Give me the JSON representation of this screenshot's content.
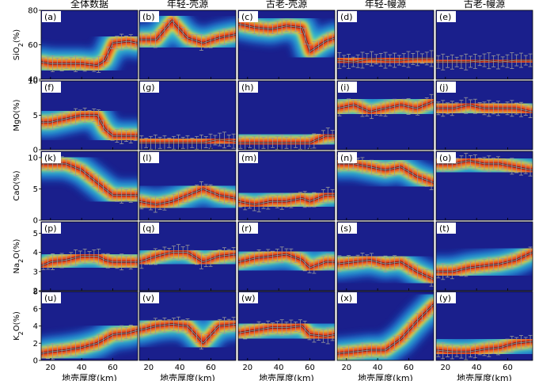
{
  "chart_data": {
    "type": "heatmap",
    "columns": [
      "全体数据",
      "年轻-壳源",
      "古老-壳源",
      "年轻-幔源",
      "古老-幔源"
    ],
    "rows": [
      {
        "ylabel": "SiO2(%)",
        "ylabel_main": "SiO",
        "ylabel_sub": "2",
        "ylabel_unit": "(%)",
        "ylim": [
          40,
          80
        ],
        "yticks": [
          "80",
          "60",
          "40"
        ],
        "yvals": [
          80,
          60,
          40
        ]
      },
      {
        "ylabel": "MgO(%)",
        "ylabel_main": "MgO",
        "ylabel_sub": "",
        "ylabel_unit": "(%)",
        "ylim": [
          0,
          10
        ],
        "yticks": [
          "10",
          "5",
          "0"
        ],
        "yvals": [
          10,
          5,
          0
        ]
      },
      {
        "ylabel": "CaO(%)",
        "ylabel_main": "CaO",
        "ylabel_sub": "",
        "ylabel_unit": "(%)",
        "ylim": [
          0,
          11
        ],
        "yticks": [
          "10",
          "5",
          "0"
        ],
        "yvals": [
          10,
          5,
          0
        ]
      },
      {
        "ylabel": "Na2O(%)",
        "ylabel_main": "Na",
        "ylabel_sub": "2",
        "ylabel_unit": "O(%)",
        "ylim": [
          2,
          5.6
        ],
        "yticks": [
          "5",
          "4",
          "3",
          "2"
        ],
        "yvals": [
          5,
          4,
          3,
          2
        ]
      },
      {
        "ylabel": "K2O(%)",
        "ylabel_main": "K",
        "ylabel_sub": "2",
        "ylabel_unit": "O(%)",
        "ylim": [
          0,
          8
        ],
        "yticks": [
          "8",
          "6",
          "4",
          "2",
          "0"
        ],
        "yvals": [
          8,
          6,
          4,
          2,
          0
        ]
      }
    ],
    "panel_labels": [
      "(a)",
      "(b)",
      "(c)",
      "(d)",
      "(e)",
      "(f)",
      "(g)",
      "(h)",
      "(i)",
      "(j)",
      "(k)",
      "(l)",
      "(m)",
      "(n)",
      "(o)",
      "(p)",
      "(q)",
      "(r)",
      "(s)",
      "(t)",
      "(u)",
      "(v)",
      "(w)",
      "(x)",
      "(y)"
    ],
    "xlabel": "地壳厚度(km)",
    "xlim": [
      14,
      76
    ],
    "xticks": [
      "20",
      "40",
      "60"
    ],
    "xvals": [
      20,
      40,
      60
    ],
    "medians": [
      [
        {
          "x": [
            14,
            20,
            30,
            40,
            50,
            55,
            60,
            70,
            76
          ],
          "y": [
            50,
            49,
            49,
            49,
            48,
            51,
            61,
            62,
            61
          ]
        },
        {
          "x": [
            14,
            25,
            35,
            45,
            55,
            65,
            76
          ],
          "y": [
            63,
            63,
            74,
            64,
            61,
            64,
            66
          ]
        },
        {
          "x": [
            14,
            25,
            35,
            45,
            55,
            60,
            70,
            76
          ],
          "y": [
            72,
            70,
            69,
            71,
            70,
            56,
            62,
            64
          ]
        },
        {
          "x": [
            14,
            25,
            35,
            45,
            55,
            65,
            76
          ],
          "y": [
            51,
            50,
            52,
            51,
            51,
            52,
            52
          ]
        },
        {
          "x": [
            14,
            25,
            35,
            45,
            55,
            65,
            76
          ],
          "y": [
            50,
            50,
            50,
            51,
            50,
            51,
            51
          ]
        }
      ],
      [
        {
          "x": [
            14,
            20,
            30,
            40,
            50,
            55,
            60,
            70,
            76
          ],
          "y": [
            4,
            4,
            4.5,
            5,
            5,
            3,
            2,
            2,
            2
          ]
        },
        {
          "x": [
            14,
            25,
            35,
            45,
            55,
            65,
            76
          ],
          "y": [
            1,
            1,
            1,
            1,
            1,
            1.5,
            1.2
          ]
        },
        {
          "x": [
            14,
            25,
            35,
            45,
            55,
            60,
            70,
            76
          ],
          "y": [
            1,
            1,
            1,
            1,
            1,
            1,
            2,
            2
          ]
        },
        {
          "x": [
            14,
            25,
            35,
            45,
            55,
            65,
            76
          ],
          "y": [
            6,
            6.5,
            5.5,
            6,
            6.5,
            6,
            7
          ]
        },
        {
          "x": [
            14,
            25,
            35,
            45,
            55,
            65,
            76
          ],
          "y": [
            6,
            6,
            6.5,
            6,
            6,
            6,
            5.5
          ]
        }
      ],
      [
        {
          "x": [
            14,
            20,
            30,
            40,
            50,
            55,
            60,
            70,
            76
          ],
          "y": [
            9,
            9,
            9,
            8,
            6,
            5,
            4,
            4,
            4
          ]
        },
        {
          "x": [
            14,
            25,
            35,
            45,
            55,
            65,
            76
          ],
          "y": [
            3,
            2.5,
            3,
            4,
            5,
            4,
            3.5
          ]
        },
        {
          "x": [
            14,
            25,
            35,
            45,
            55,
            60,
            70,
            76
          ],
          "y": [
            3,
            2.5,
            3,
            3,
            3.5,
            3,
            4,
            4
          ]
        },
        {
          "x": [
            14,
            25,
            35,
            45,
            55,
            65,
            76
          ],
          "y": [
            9,
            9,
            8.5,
            8,
            8.5,
            7,
            6
          ]
        },
        {
          "x": [
            14,
            25,
            35,
            45,
            55,
            65,
            76
          ],
          "y": [
            9,
            9,
            9.5,
            9,
            9,
            8.5,
            8
          ]
        }
      ],
      [
        {
          "x": [
            14,
            20,
            30,
            40,
            50,
            55,
            60,
            70,
            76
          ],
          "y": [
            3.3,
            3.5,
            3.6,
            3.8,
            3.8,
            3.6,
            3.5,
            3.5,
            3.5
          ]
        },
        {
          "x": [
            14,
            25,
            35,
            45,
            55,
            65,
            76
          ],
          "y": [
            3.5,
            3.8,
            4,
            4,
            3.5,
            3.8,
            3.9
          ]
        },
        {
          "x": [
            14,
            25,
            35,
            45,
            55,
            60,
            70,
            76
          ],
          "y": [
            3.5,
            3.7,
            3.8,
            3.9,
            3.6,
            3.2,
            3.5,
            3.5
          ]
        },
        {
          "x": [
            14,
            25,
            35,
            45,
            55,
            65,
            76
          ],
          "y": [
            3.4,
            3.5,
            3.6,
            3.4,
            3.5,
            3,
            2.6
          ]
        },
        {
          "x": [
            14,
            25,
            35,
            45,
            55,
            65,
            76
          ],
          "y": [
            3,
            3,
            3.2,
            3.3,
            3.4,
            3.6,
            4
          ]
        }
      ],
      [
        {
          "x": [
            14,
            20,
            30,
            40,
            50,
            55,
            60,
            70,
            76
          ],
          "y": [
            0.8,
            1,
            1.2,
            1.5,
            2,
            2.5,
            3,
            3.2,
            3.5
          ]
        },
        {
          "x": [
            14,
            25,
            35,
            45,
            55,
            65,
            76
          ],
          "y": [
            3.5,
            4,
            4.2,
            4,
            2,
            4,
            4.2
          ]
        },
        {
          "x": [
            14,
            25,
            35,
            45,
            55,
            60,
            70,
            76
          ],
          "y": [
            3.2,
            3.5,
            3.8,
            3.8,
            4,
            3,
            2.8,
            3
          ]
        },
        {
          "x": [
            14,
            25,
            35,
            45,
            55,
            65,
            76
          ],
          "y": [
            0.8,
            1,
            1.2,
            1.2,
            2.5,
            4.5,
            6.5
          ]
        },
        {
          "x": [
            14,
            25,
            35,
            45,
            55,
            65,
            76
          ],
          "y": [
            1.2,
            1,
            1,
            1.3,
            1.5,
            2,
            2.2
          ]
        }
      ]
    ]
  }
}
